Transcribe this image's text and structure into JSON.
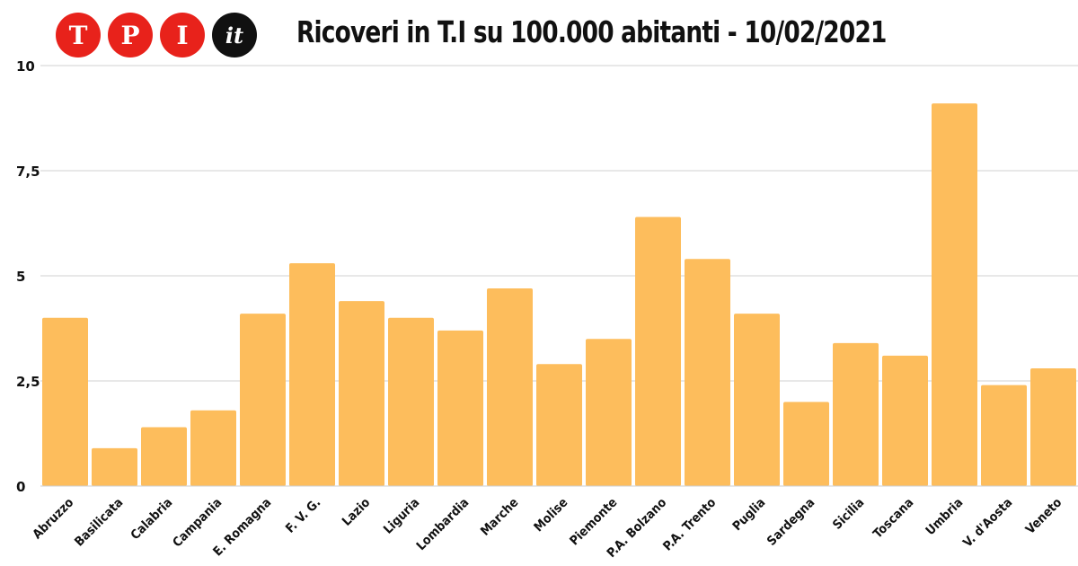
{
  "logo": {
    "letters": [
      "T",
      "P",
      "I"
    ],
    "suffix": "it",
    "colors": {
      "red": "#e8221b",
      "dark": "#111111"
    }
  },
  "chart_data": {
    "type": "bar",
    "title": "Ricoveri in T.I su 100.000 abitanti - 10/02/2021",
    "xlabel": "",
    "ylabel": "",
    "ylim": [
      0,
      10
    ],
    "yticks": [
      {
        "value": 0,
        "label": "0"
      },
      {
        "value": 2.5,
        "label": "2,5"
      },
      {
        "value": 5,
        "label": "5"
      },
      {
        "value": 7.5,
        "label": "7,5"
      },
      {
        "value": 10,
        "label": "10"
      }
    ],
    "grid": true,
    "bar_color": "#fdbd5c",
    "categories": [
      "Abruzzo",
      "Basilicata",
      "Calabria",
      "Campania",
      "E. Romagna",
      "F. V. G.",
      "Lazio",
      "Liguria",
      "Lombardia",
      "Marche",
      "Molise",
      "Piemonte",
      "P.A. Bolzano",
      "P.A. Trento",
      "Puglia",
      "Sardegna",
      "Sicilia",
      "Toscana",
      "Umbria",
      "V. d'Aosta",
      "Veneto"
    ],
    "values": [
      4.0,
      0.9,
      1.4,
      1.8,
      4.1,
      5.3,
      4.4,
      4.0,
      3.7,
      4.7,
      2.9,
      3.5,
      6.4,
      5.4,
      4.1,
      2.0,
      3.4,
      3.1,
      9.1,
      2.4,
      2.8
    ]
  }
}
